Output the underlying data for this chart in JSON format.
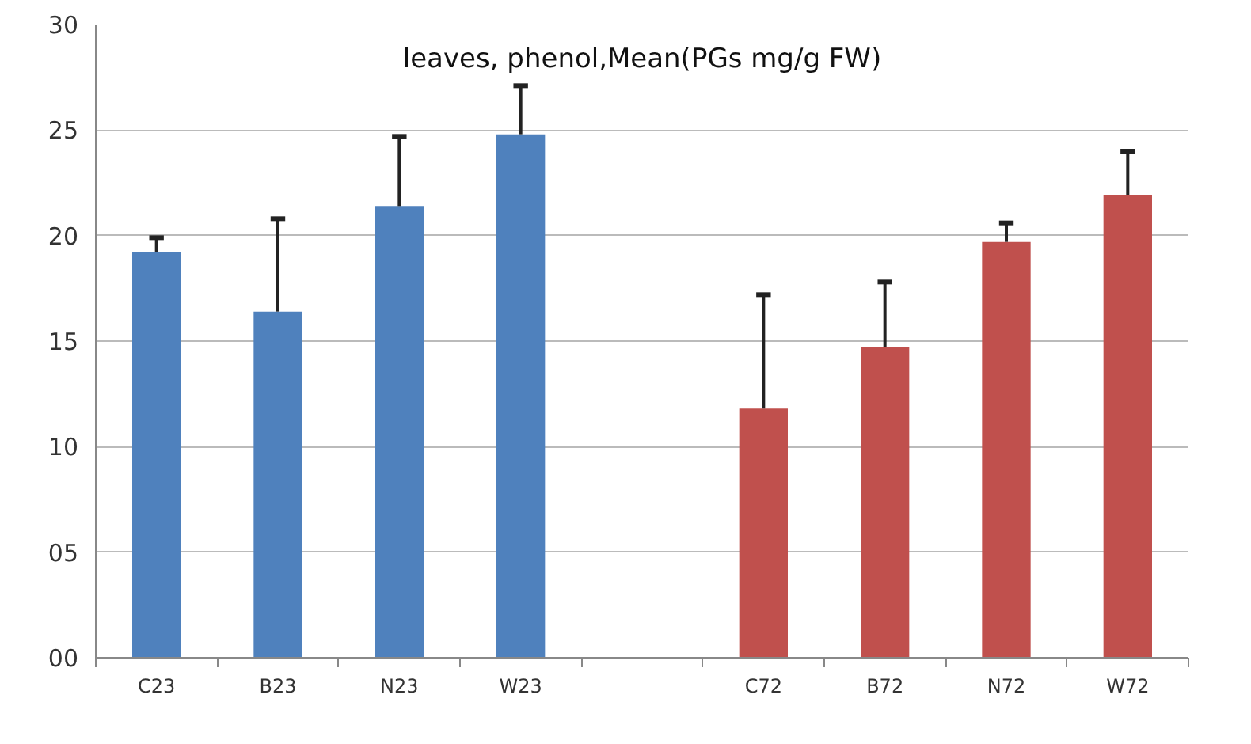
{
  "chart_data": {
    "type": "bar",
    "title": "leaves, phenol,Mean(PGs mg/g FW)",
    "categories": [
      "C23",
      "B23",
      "N23",
      "W23",
      null,
      "C72",
      "B72",
      "N72",
      "W72"
    ],
    "values": [
      19.2,
      16.4,
      21.4,
      24.8,
      null,
      11.8,
      14.7,
      19.7,
      21.9
    ],
    "colors": [
      "#4f81bd",
      "#4f81bd",
      "#4f81bd",
      "#4f81bd",
      "#4f81bd",
      "#c0504d",
      "#c0504d",
      "#c0504d",
      "#c0504d"
    ],
    "errors": [
      [
        19.2,
        19.9
      ],
      [
        16.4,
        20.8
      ],
      [
        21.4,
        24.7
      ],
      [
        24.8,
        27.1
      ],
      null,
      [
        11.8,
        17.2
      ],
      [
        14.7,
        17.8
      ],
      [
        19.7,
        20.6
      ],
      [
        21.9,
        24.0
      ]
    ],
    "ylim": [
      0,
      30
    ],
    "yticks": [
      {
        "value": 0,
        "label": "00"
      },
      {
        "value": 5,
        "label": "05"
      },
      10,
      15,
      20,
      25,
      30
    ],
    "grid": "y"
  }
}
